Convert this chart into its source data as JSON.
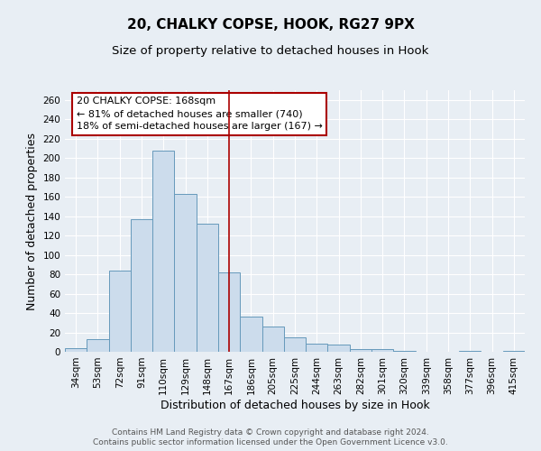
{
  "title": "20, CHALKY COPSE, HOOK, RG27 9PX",
  "subtitle": "Size of property relative to detached houses in Hook",
  "xlabel": "Distribution of detached houses by size in Hook",
  "ylabel": "Number of detached properties",
  "categories": [
    "34sqm",
    "53sqm",
    "72sqm",
    "91sqm",
    "110sqm",
    "129sqm",
    "148sqm",
    "167sqm",
    "186sqm",
    "205sqm",
    "225sqm",
    "244sqm",
    "263sqm",
    "282sqm",
    "301sqm",
    "320sqm",
    "339sqm",
    "358sqm",
    "377sqm",
    "396sqm",
    "415sqm"
  ],
  "values": [
    4,
    13,
    84,
    137,
    208,
    163,
    132,
    82,
    36,
    26,
    15,
    8,
    7,
    3,
    3,
    1,
    0,
    0,
    1,
    0,
    1
  ],
  "bar_color": "#ccdcec",
  "bar_edge_color": "#6699bb",
  "vline_x": 7,
  "vline_color": "#aa0000",
  "annotation_text": "20 CHALKY COPSE: 168sqm\n← 81% of detached houses are smaller (740)\n18% of semi-detached houses are larger (167) →",
  "annotation_box_color": "#ffffff",
  "annotation_box_edge": "#aa0000",
  "ylim": [
    0,
    270
  ],
  "yticks": [
    0,
    20,
    40,
    60,
    80,
    100,
    120,
    140,
    160,
    180,
    200,
    220,
    240,
    260
  ],
  "footer1": "Contains HM Land Registry data © Crown copyright and database right 2024.",
  "footer2": "Contains public sector information licensed under the Open Government Licence v3.0.",
  "bg_color": "#e8eef4",
  "plot_bg_color": "#e8eef4",
  "grid_color": "#ffffff",
  "title_fontsize": 11,
  "subtitle_fontsize": 9.5,
  "label_fontsize": 9,
  "tick_fontsize": 7.5,
  "footer_fontsize": 6.5,
  "ann_fontsize": 8
}
